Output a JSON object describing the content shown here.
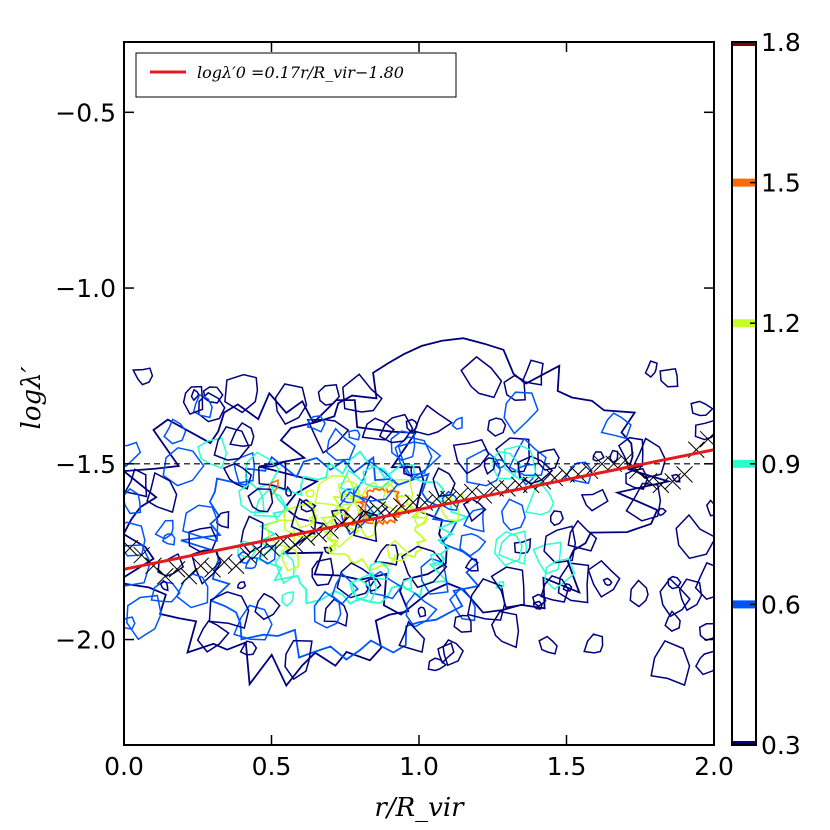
{
  "chart_data": {
    "type": "contour",
    "title": "",
    "xlabel": "r/R_vir",
    "ylabel": "logλ′",
    "xlim": [
      0.0,
      2.0
    ],
    "ylim": [
      -2.3,
      -0.3
    ],
    "x_ticks": [
      0.0,
      0.5,
      1.0,
      1.5,
      2.0
    ],
    "x_tick_labels": [
      "0.0",
      "0.5",
      "1.0",
      "1.5",
      "2.0"
    ],
    "y_ticks": [
      -0.5,
      -1.0,
      -1.5,
      -2.0
    ],
    "y_tick_labels": [
      "−0.5",
      "−1.0",
      "−1.5",
      "−2.0"
    ],
    "reference_line": {
      "y": -1.5,
      "style": "dashed",
      "color": "#000000"
    },
    "fit_line": {
      "label": "logλ′0 =0.17r/R_vir−1.80",
      "slope": 0.17,
      "intercept": -1.8,
      "color": "#e41a1c"
    },
    "binned_medians": {
      "marker": "x",
      "x": [
        0.02,
        0.06,
        0.1,
        0.14,
        0.18,
        0.22,
        0.26,
        0.3,
        0.34,
        0.38,
        0.42,
        0.46,
        0.5,
        0.54,
        0.58,
        0.62,
        0.66,
        0.7,
        0.74,
        0.78,
        0.82,
        0.86,
        0.9,
        0.94,
        0.98,
        1.02,
        1.06,
        1.1,
        1.14,
        1.18,
        1.22,
        1.26,
        1.3,
        1.34,
        1.38,
        1.42,
        1.46,
        1.5,
        1.54,
        1.58,
        1.62,
        1.66,
        1.7,
        1.74,
        1.78,
        1.82,
        1.86,
        1.9,
        1.94,
        1.98
      ],
      "y": [
        -1.74,
        -1.76,
        -1.79,
        -1.82,
        -1.8,
        -1.82,
        -1.79,
        -1.8,
        -1.78,
        -1.79,
        -1.76,
        -1.75,
        -1.74,
        -1.72,
        -1.73,
        -1.71,
        -1.7,
        -1.69,
        -1.67,
        -1.66,
        -1.64,
        -1.63,
        -1.64,
        -1.62,
        -1.61,
        -1.61,
        -1.6,
        -1.6,
        -1.59,
        -1.58,
        -1.59,
        -1.57,
        -1.57,
        -1.56,
        -1.56,
        -1.55,
        -1.54,
        -1.53,
        -1.53,
        -1.52,
        -1.5,
        -1.5,
        -1.49,
        -1.52,
        -1.55,
        -1.56,
        -1.55,
        -1.53,
        -1.46,
        -1.43
      ]
    },
    "contour_levels": [
      0.3,
      0.6,
      0.9,
      1.2,
      1.5,
      1.8
    ],
    "density_centers": [
      {
        "x": 0.55,
        "y": -1.7,
        "level": 0.3,
        "rx": 0.52,
        "ry": 0.38
      },
      {
        "x": 1.15,
        "y": -1.55,
        "level": 0.3,
        "rx": 0.6,
        "ry": 0.35
      },
      {
        "x": 0.7,
        "y": -1.75,
        "level": 0.6,
        "rx": 0.45,
        "ry": 0.27
      },
      {
        "x": 0.8,
        "y": -1.7,
        "level": 0.9,
        "rx": 0.32,
        "ry": 0.2
      },
      {
        "x": 0.85,
        "y": -1.68,
        "level": 1.2,
        "rx": 0.16,
        "ry": 0.11
      },
      {
        "x": 0.87,
        "y": -1.62,
        "level": 1.5,
        "rx": 0.07,
        "ry": 0.05
      }
    ],
    "colorbar": {
      "ticks": [
        1.8,
        1.5,
        1.2,
        0.9,
        0.6,
        0.3
      ],
      "tick_labels": [
        "1.8",
        "1.5",
        "1.2",
        "0.9",
        "0.6",
        "0.3"
      ],
      "colors": [
        "#800000",
        "#ff6a00",
        "#c6ff2a",
        "#2affcd",
        "#0054ff",
        "#00007f"
      ]
    }
  }
}
